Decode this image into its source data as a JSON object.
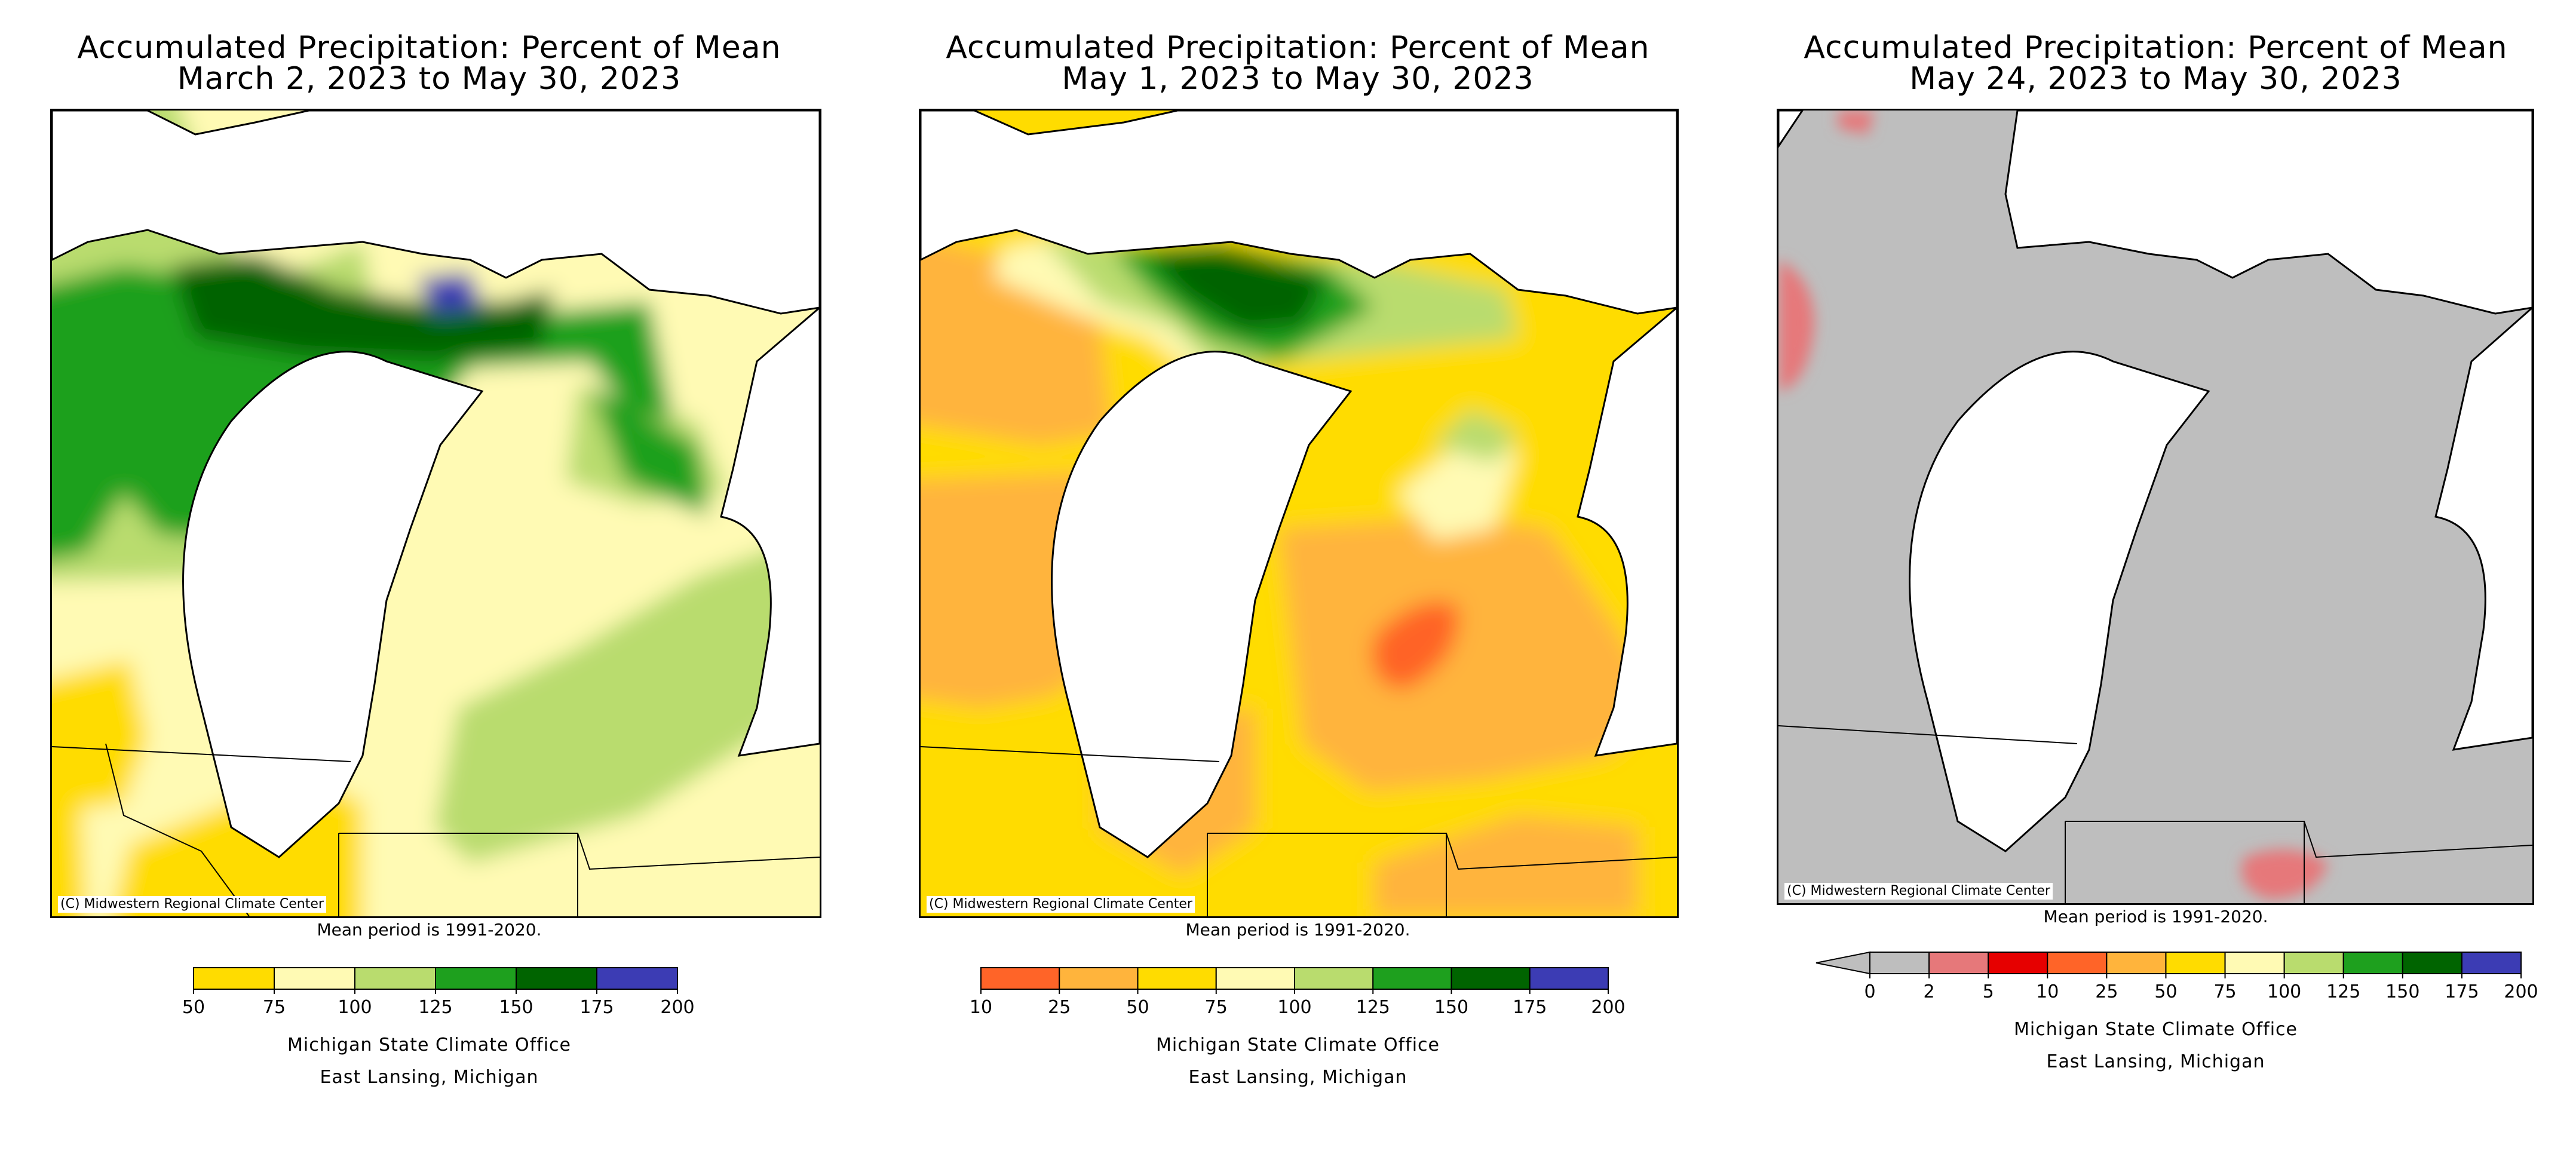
{
  "panels": [
    {
      "title_line1": "Accumulated Precipitation: Percent of Mean",
      "title_line2": "March 2, 2023 to May 30, 2023",
      "copyright": "(C) Midwestern Regional Climate Center",
      "mean_period": "Mean period is 1991-2020.",
      "office_line1": "Michigan State Climate Office",
      "office_line2": "East Lansing, Michigan",
      "legend": {
        "ticks": [
          "50",
          "75",
          "100",
          "125",
          "150",
          "175",
          "200"
        ],
        "colors": [
          "#ffdc00",
          "#fffab4",
          "#b9dc6e",
          "#1ea01e",
          "#006400",
          "#3c3cb4"
        ],
        "lower_arrow": false
      }
    },
    {
      "title_line1": "Accumulated Precipitation: Percent of Mean",
      "title_line2": "May 1, 2023 to May 30, 2023",
      "copyright": "(C) Midwestern Regional Climate Center",
      "mean_period": "Mean period is 1991-2020.",
      "office_line1": "Michigan State Climate Office",
      "office_line2": "East Lansing, Michigan",
      "legend": {
        "ticks": [
          "10",
          "25",
          "50",
          "75",
          "100",
          "125",
          "150",
          "175",
          "200"
        ],
        "colors": [
          "#ff6428",
          "#ffb43c",
          "#ffdc00",
          "#fffab4",
          "#b9dc6e",
          "#1ea01e",
          "#006400",
          "#3c3cb4"
        ],
        "lower_arrow": false
      }
    },
    {
      "title_line1": "Accumulated Precipitation: Percent of Mean",
      "title_line2": "May 24, 2023 to May 30, 2023",
      "copyright": "(C) Midwestern Regional Climate Center",
      "mean_period": "Mean period is 1991-2020.",
      "office_line1": "Michigan State Climate Office",
      "office_line2": "East Lansing, Michigan",
      "legend": {
        "ticks": [
          "0",
          "2",
          "5",
          "10",
          "25",
          "50",
          "75",
          "100",
          "125",
          "150",
          "175",
          "200"
        ],
        "colors": [
          "#bebebe",
          "#e6787a",
          "#e60000",
          "#ff6428",
          "#ffb43c",
          "#ffdc00",
          "#fffab4",
          "#b9dc6e",
          "#1ea01e",
          "#006400",
          "#3c3cb4"
        ],
        "lower_arrow": true
      }
    }
  ]
}
